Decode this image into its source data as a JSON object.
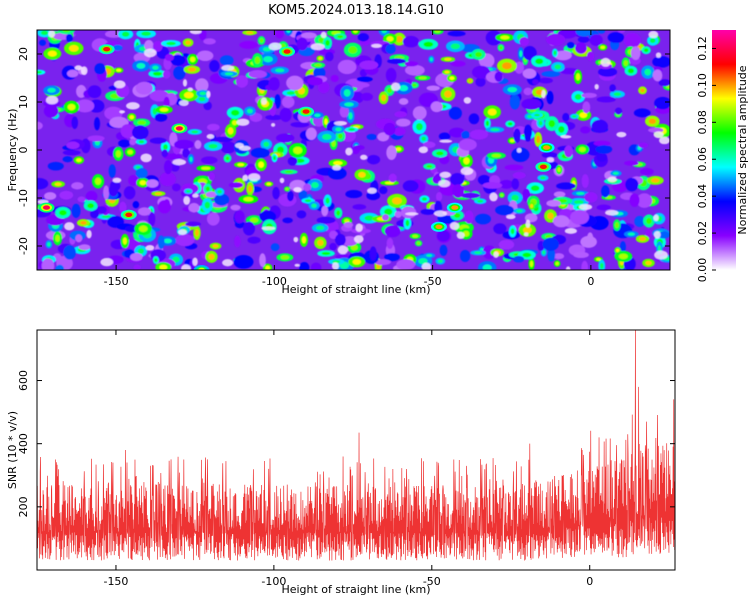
{
  "title": "KOM5.2024.013.18.14.G10",
  "colors": {
    "line": "#ee3333",
    "axis": "#000000",
    "background": "#ffffff"
  },
  "chart_data": [
    {
      "type": "heatmap",
      "xlabel": "Height of straight line (km)",
      "ylabel": "Frequency (Hz)",
      "xlim": [
        -175,
        25
      ],
      "ylim": [
        -25,
        25
      ],
      "x_ticks": [
        -150,
        -100,
        -50,
        0
      ],
      "x_tick_labels": [
        "-150",
        "-100",
        "-50",
        "0"
      ],
      "y_ticks": [
        -20,
        -10,
        0,
        10,
        20
      ],
      "y_tick_labels": [
        "-20",
        "-10",
        "0",
        "10",
        "20"
      ],
      "colorbar": {
        "label": "Normalized spectral amplitude",
        "range": [
          0,
          0.13
        ],
        "ticks": [
          0,
          0.02,
          0.04,
          0.06,
          0.08,
          0.1,
          0.12
        ],
        "tick_labels": [
          "0.00",
          "0.02",
          "0.04",
          "0.06",
          "0.08",
          "0.10",
          "0.12"
        ],
        "colormap": [
          "#ffffff",
          "#8800ff",
          "#0000ff",
          "#00ffff",
          "#00ff00",
          "#ffff00",
          "#ff0000",
          "#ff00aa"
        ]
      },
      "peaks": [
        {
          "x": -172,
          "y": -12,
          "value": 0.12
        },
        {
          "x": -153,
          "y": 21,
          "value": 0.11
        },
        {
          "x": -146,
          "y": -13.5,
          "value": 0.11
        },
        {
          "x": -130,
          "y": 4.5,
          "value": 0.12
        },
        {
          "x": -96,
          "y": 20.5,
          "value": 0.11
        },
        {
          "x": -90,
          "y": 8,
          "value": 0.11
        },
        {
          "x": -43,
          "y": -12,
          "value": 0.1
        },
        {
          "x": -48,
          "y": -16,
          "value": 0.1
        },
        {
          "x": -15,
          "y": -3.5,
          "value": 0.11
        },
        {
          "x": -14,
          "y": 0.5,
          "value": 0.1
        },
        {
          "x": -123,
          "y": -25,
          "value": 0.09
        }
      ]
    },
    {
      "type": "line",
      "xlabel": "Height of straight line (km)",
      "ylabel": "SNR (10 * v/v)",
      "xlim": [
        -175,
        27
      ],
      "ylim": [
        0,
        760
      ],
      "x_ticks": [
        -150,
        -100,
        -50,
        0
      ],
      "x_tick_labels": [
        "-150",
        "-100",
        "-50",
        "0"
      ],
      "y_ticks": [
        200,
        400,
        600
      ],
      "y_tick_labels": [
        "200",
        "400",
        "600"
      ],
      "grid": false,
      "series": [
        {
          "color": "#ee3333",
          "n_points": 2000,
          "baseline": 150,
          "typical_peak": 300,
          "peaks": [
            {
              "x": -174,
              "y": 310
            },
            {
              "x": -151,
              "y": 340
            },
            {
              "x": -147,
              "y": 380
            },
            {
              "x": -139,
              "y": 330
            },
            {
              "x": -103,
              "y": 345
            },
            {
              "x": -73,
              "y": 435
            },
            {
              "x": -58,
              "y": 320
            },
            {
              "x": -43,
              "y": 350
            },
            {
              "x": -19,
              "y": 400
            },
            {
              "x": 3,
              "y": 420
            },
            {
              "x": 12,
              "y": 430
            },
            {
              "x": 14.5,
              "y": 760
            },
            {
              "x": 15.5,
              "y": 580
            },
            {
              "x": 18,
              "y": 470
            }
          ]
        }
      ]
    }
  ]
}
